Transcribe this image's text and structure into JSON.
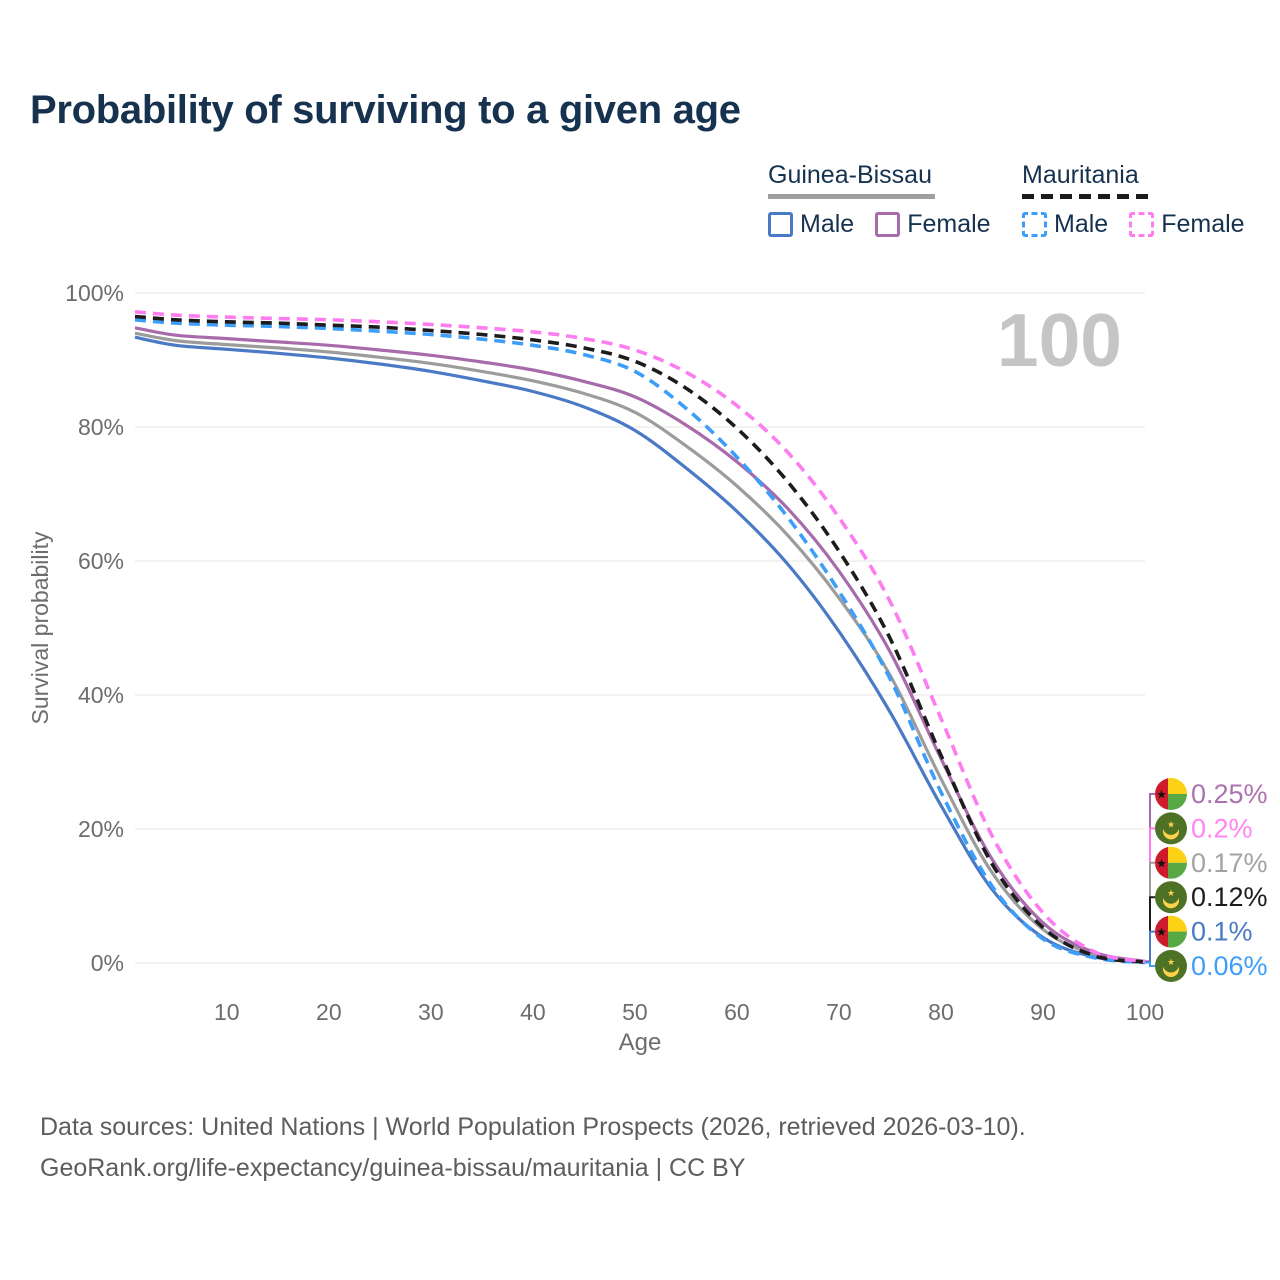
{
  "title": "Probability of surviving to a given age",
  "watermark_age": "100",
  "legend": {
    "groups": [
      {
        "label": "Guinea-Bissau",
        "line_style": "solid",
        "line_color": "#9e9e9e",
        "items": [
          {
            "label": "Male",
            "color": "#4a79c5",
            "style": "solid"
          },
          {
            "label": "Female",
            "color": "#a76aaa",
            "style": "solid"
          }
        ]
      },
      {
        "label": "Mauritania",
        "line_style": "dashed",
        "line_color": "#1b1b1b",
        "items": [
          {
            "label": "Male",
            "color": "#3d9ef9",
            "style": "dashed"
          },
          {
            "label": "Female",
            "color": "#fd7cf0",
            "style": "dashed"
          }
        ]
      }
    ]
  },
  "footer": {
    "line1": "Data sources: United Nations | World Population Prospects (2026, retrieved 2026-03-10).",
    "line2": "GeoRank.org/life-expectancy/guinea-bissau/mauritania | CC BY"
  },
  "chart_data": {
    "type": "line",
    "title": "Probability of surviving to a given age",
    "xlabel": "Age",
    "ylabel": "Survival probability",
    "xlim": [
      1,
      100
    ],
    "ylim": [
      0,
      100
    ],
    "grid": "horizontal",
    "legend_position": "top-right",
    "x_ticks": [
      10,
      20,
      30,
      40,
      50,
      60,
      70,
      80,
      90,
      100
    ],
    "y_ticks": [
      {
        "value": 0,
        "label": "0%"
      },
      {
        "value": 20,
        "label": "20%"
      },
      {
        "value": 40,
        "label": "40%"
      },
      {
        "value": 60,
        "label": "60%"
      },
      {
        "value": 80,
        "label": "80%"
      },
      {
        "value": 100,
        "label": "100%"
      }
    ],
    "ages": [
      1,
      5,
      10,
      15,
      20,
      25,
      30,
      35,
      40,
      45,
      50,
      55,
      60,
      65,
      70,
      75,
      80,
      85,
      90,
      95,
      100
    ],
    "series": [
      {
        "name": "Guinea-Bissau Male",
        "country": "Guinea-Bissau",
        "sex": "male",
        "color": "#4a79c5",
        "dash": "solid",
        "values": [
          93.4,
          92.2,
          91.6,
          91.0,
          90.3,
          89.4,
          88.3,
          86.9,
          85.3,
          83.0,
          79.5,
          73.9,
          67.4,
          59.5,
          49.5,
          37.5,
          23.5,
          11.0,
          3.8,
          0.9,
          0.1
        ]
      },
      {
        "name": "Guinea-Bissau",
        "country": "Guinea-Bissau",
        "sex": "all",
        "color": "#9c9c9c",
        "dash": "solid",
        "values": [
          94.0,
          92.9,
          92.3,
          91.8,
          91.2,
          90.4,
          89.5,
          88.3,
          86.9,
          85.0,
          82.2,
          77.2,
          71.2,
          63.8,
          54.5,
          43.0,
          27.5,
          13.5,
          5.0,
          1.3,
          0.17
        ]
      },
      {
        "name": "Guinea-Bissau Female",
        "country": "Guinea-Bissau",
        "sex": "female",
        "color": "#a76aaa",
        "dash": "solid",
        "values": [
          94.8,
          93.7,
          93.2,
          92.7,
          92.2,
          91.5,
          90.7,
          89.7,
          88.5,
          86.8,
          84.5,
          80.3,
          74.8,
          67.8,
          58.5,
          46.5,
          30.5,
          15.5,
          6.0,
          1.6,
          0.25
        ]
      },
      {
        "name": "Mauritania Male",
        "country": "Mauritania",
        "sex": "male",
        "color": "#3d9ef9",
        "dash": "dashed",
        "values": [
          96.0,
          95.5,
          95.2,
          95.0,
          94.7,
          94.3,
          93.8,
          93.1,
          92.2,
          90.8,
          88.3,
          82.8,
          75.5,
          66.5,
          55.5,
          42.5,
          25.5,
          11.5,
          3.6,
          0.8,
          0.06
        ]
      },
      {
        "name": "Mauritania",
        "country": "Mauritania",
        "sex": "all",
        "color": "#1c1c1c",
        "dash": "dashed",
        "values": [
          96.5,
          96.0,
          95.7,
          95.5,
          95.2,
          94.9,
          94.4,
          93.8,
          93.0,
          91.8,
          89.8,
          85.8,
          79.8,
          71.8,
          61.5,
          48.5,
          31.0,
          14.8,
          5.3,
          1.1,
          0.12
        ]
      },
      {
        "name": "Mauritania Female",
        "country": "Mauritania",
        "sex": "female",
        "color": "#fd7cf0",
        "dash": "dashed",
        "values": [
          97.2,
          96.7,
          96.4,
          96.2,
          96.0,
          95.7,
          95.3,
          94.8,
          94.2,
          93.2,
          91.5,
          88.2,
          83.2,
          76.2,
          66.5,
          54.0,
          36.5,
          19.0,
          7.5,
          1.7,
          0.2
        ]
      }
    ],
    "end_labels": [
      {
        "label": "0.25%",
        "series": "Guinea-Bissau Female",
        "flag": "guinea-bissau",
        "color": "#ad72b0"
      },
      {
        "label": "0.2%",
        "series": "Mauritania Female",
        "flag": "mauritania",
        "color": "#ff85f1"
      },
      {
        "label": "0.17%",
        "series": "Guinea-Bissau",
        "flag": "guinea-bissau",
        "color": "#a3a3a3"
      },
      {
        "label": "0.12%",
        "series": "Mauritania",
        "flag": "mauritania",
        "color": "#1c1c1c"
      },
      {
        "label": "0.1%",
        "series": "Guinea-Bissau Male",
        "flag": "guinea-bissau",
        "color": "#4a79c5"
      },
      {
        "label": "0.06%",
        "series": "Mauritania Male",
        "flag": "mauritania",
        "color": "#3d9ef9"
      }
    ]
  }
}
